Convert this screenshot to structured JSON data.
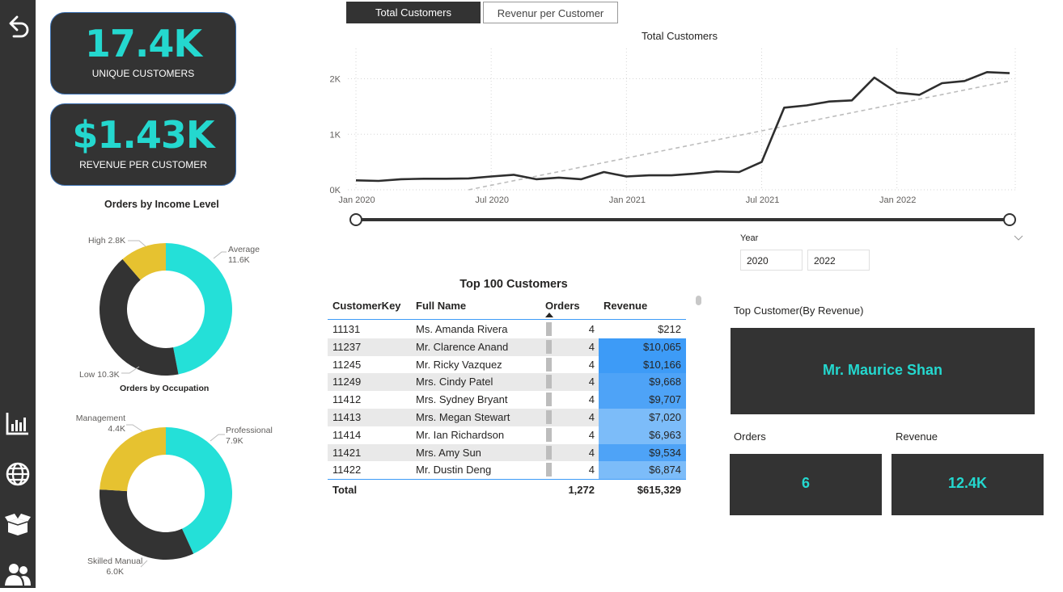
{
  "nav": {
    "back_icon": "undo-icon",
    "icons": [
      "bar-chart-icon",
      "globe-icon",
      "open-box-icon",
      "users-icon"
    ]
  },
  "kpis": {
    "unique_customers": {
      "value": "17.4K",
      "label": "UNIQUE CUSTOMERS"
    },
    "revenue_per_customer": {
      "value": "$1.43K",
      "label": "REVENUE PER CUSTOMER"
    }
  },
  "income_donut": {
    "title": "Orders by Income Level",
    "slices": [
      {
        "name": "Average",
        "value_label": "11.6K",
        "value": 11600,
        "color": "#24e0d8"
      },
      {
        "name": "Low",
        "value_label": "10.3K",
        "value": 10300,
        "color": "#333333"
      },
      {
        "name": "High",
        "value_label": "2.8K",
        "value": 2800,
        "color": "#e6c230"
      }
    ]
  },
  "occupation_donut": {
    "title": "Orders by Occupation",
    "slices": [
      {
        "name": "Professional",
        "value_label": "7.9K",
        "value": 7900,
        "color": "#24e0d8"
      },
      {
        "name": "Skilled Manual",
        "value_label": "6.0K",
        "value": 6000,
        "color": "#333333"
      },
      {
        "name": "Management",
        "value_label": "4.4K",
        "value": 4400,
        "color": "#e6c230"
      }
    ]
  },
  "tabs": [
    {
      "label": "Total Customers",
      "active": true
    },
    {
      "label": "Revenur per Customer",
      "active": false
    }
  ],
  "chart_data": {
    "type": "line",
    "title": "Total Customers",
    "x_ticks": [
      "Jan 2020",
      "Jul 2020",
      "Jan 2021",
      "Jul 2021",
      "Jan 2022"
    ],
    "y_ticks": [
      "0K",
      "1K",
      "2K"
    ],
    "ylim": [
      0,
      2400
    ],
    "months": 30,
    "series": [
      {
        "name": "Total Customers",
        "values": [
          170,
          160,
          190,
          200,
          200,
          205,
          240,
          270,
          190,
          220,
          190,
          320,
          240,
          260,
          260,
          290,
          330,
          320,
          500,
          1480,
          1520,
          1590,
          1610,
          2020,
          1750,
          1710,
          1920,
          1960,
          2120,
          2100
        ]
      }
    ],
    "trend": {
      "style": "dashed",
      "start": [
        5,
        0
      ],
      "end": [
        29,
        1960
      ]
    }
  },
  "year_slicer": {
    "label": "Year",
    "from": "2020",
    "to": "2022"
  },
  "table": {
    "title": "Top 100 Customers",
    "columns": [
      "CustomerKey",
      "Full Name",
      "Orders",
      "Revenue"
    ],
    "rows": [
      {
        "key": "11131",
        "name": "Ms. Amanda Rivera",
        "orders": "4",
        "revenue": "$212",
        "shade": "#ffffff"
      },
      {
        "key": "11237",
        "name": "Mr. Clarence Anand",
        "orders": "4",
        "revenue": "$10,065",
        "shade": "#3d9bf7"
      },
      {
        "key": "11245",
        "name": "Mr. Ricky Vazquez",
        "orders": "4",
        "revenue": "$10,166",
        "shade": "#3d9bf7"
      },
      {
        "key": "11249",
        "name": "Mrs. Cindy Patel",
        "orders": "4",
        "revenue": "$9,668",
        "shade": "#4ea3f7"
      },
      {
        "key": "11412",
        "name": "Mrs. Sydney Bryant",
        "orders": "4",
        "revenue": "$9,707",
        "shade": "#4ea3f7"
      },
      {
        "key": "11413",
        "name": "Mrs. Megan Stewart",
        "orders": "4",
        "revenue": "$7,020",
        "shade": "#7cbcf9"
      },
      {
        "key": "11414",
        "name": "Mr. Ian Richardson",
        "orders": "4",
        "revenue": "$6,963",
        "shade": "#7cbcf9"
      },
      {
        "key": "11421",
        "name": "Mrs. Amy Sun",
        "orders": "4",
        "revenue": "$9,534",
        "shade": "#4ea3f7"
      },
      {
        "key": "11422",
        "name": "Mr. Dustin Deng",
        "orders": "4",
        "revenue": "$6,874",
        "shade": "#7cbcf9"
      }
    ],
    "total": {
      "label": "Total",
      "orders": "1,272",
      "revenue": "$615,329"
    }
  },
  "top_customer": {
    "label": "Top Customer(By Revenue)",
    "name": "Mr. Maurice Shan",
    "orders_label": "Orders",
    "orders_value": "6",
    "revenue_label": "Revenue",
    "revenue_value": "12.4K"
  }
}
